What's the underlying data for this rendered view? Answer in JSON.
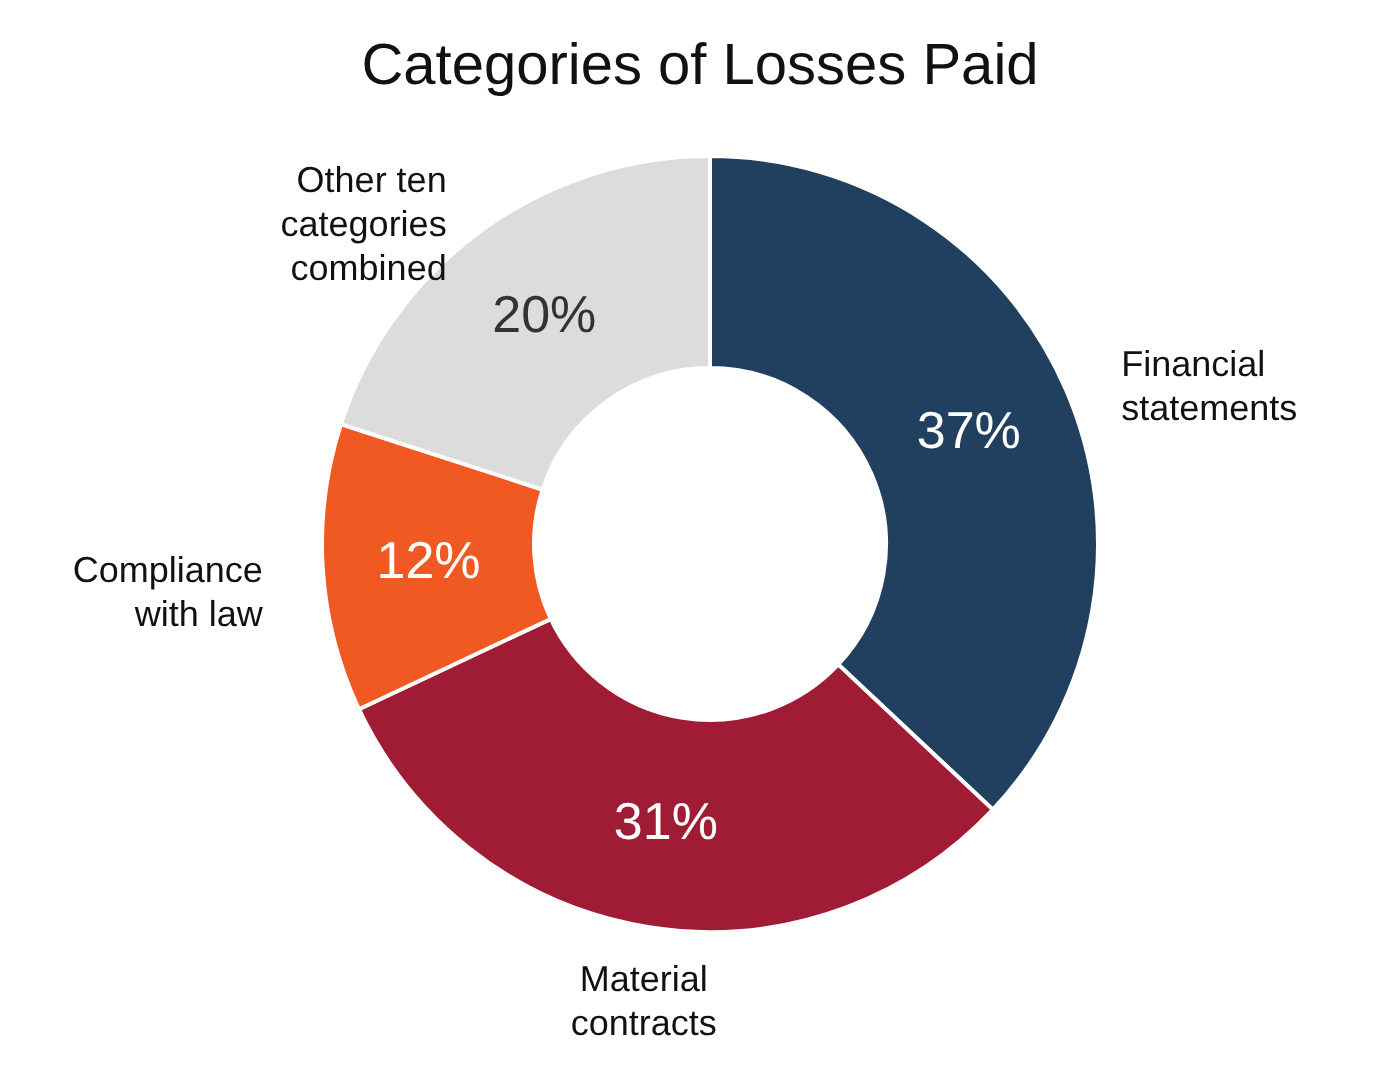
{
  "chart_data": {
    "type": "donut",
    "title": "Categories of Losses Paid",
    "categories": [
      "Financial statements",
      "Material contracts",
      "Compliance with law",
      "Other ten categories combined"
    ],
    "values": [
      37,
      31,
      12,
      20
    ],
    "colors": [
      "#213f5f",
      "#a01c34",
      "#f05a22",
      "#dcdcdc"
    ],
    "value_labels": [
      "37%",
      "31%",
      "12%",
      "20%"
    ]
  }
}
